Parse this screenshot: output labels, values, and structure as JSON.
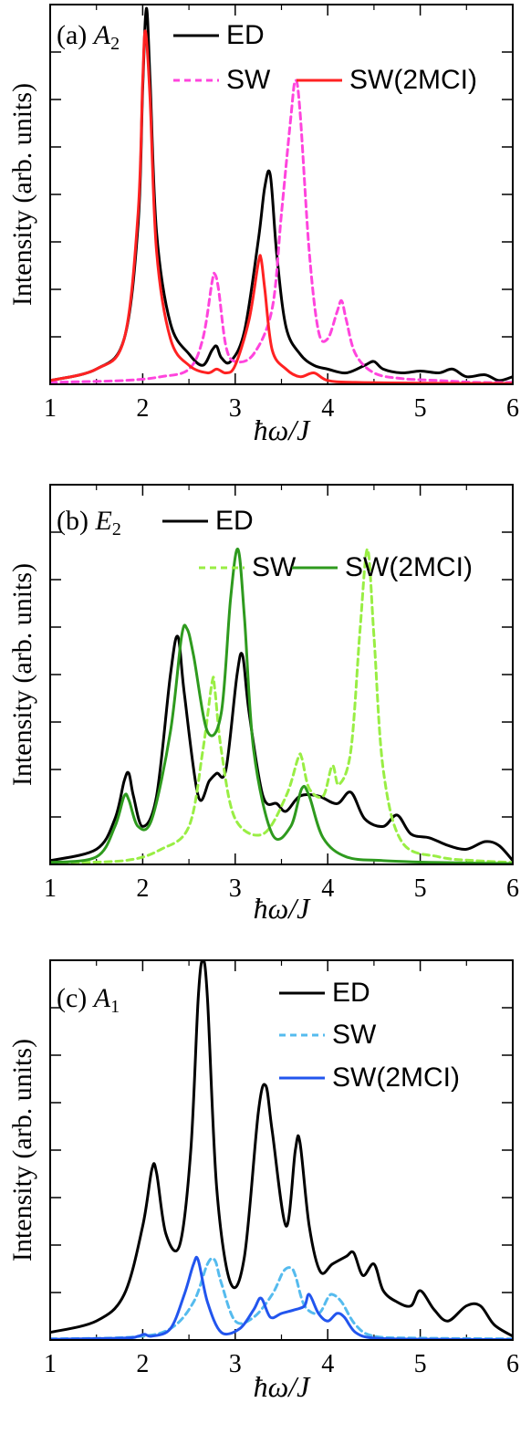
{
  "chart_data": [
    {
      "panel_id": "a",
      "type": "line",
      "label": {
        "letter": "(a)",
        "symbol": "A",
        "subscript": "2"
      },
      "xlabel": "ħω/J",
      "ylabel": "Intensity (arb. units)",
      "xlim": [
        1,
        6
      ],
      "xticks": [
        "1",
        "2",
        "3",
        "4",
        "5",
        "6"
      ],
      "ylim": [
        0,
        1.0
      ],
      "legend_placement": "top-right",
      "series": [
        {
          "name": "ED",
          "color": "#000000",
          "dash": "solid",
          "x": [
            1.0,
            1.5,
            1.8,
            1.95,
            2.0,
            2.04,
            2.08,
            2.15,
            2.3,
            2.5,
            2.65,
            2.75,
            2.8,
            2.85,
            2.95,
            3.1,
            3.25,
            3.32,
            3.38,
            3.45,
            3.55,
            3.7,
            3.85,
            4.0,
            4.2,
            4.4,
            4.5,
            4.6,
            4.8,
            5.0,
            5.2,
            5.35,
            5.5,
            5.7,
            5.85,
            6.0
          ],
          "y": [
            0.01,
            0.04,
            0.12,
            0.42,
            0.78,
            0.99,
            0.8,
            0.4,
            0.16,
            0.08,
            0.05,
            0.09,
            0.1,
            0.07,
            0.06,
            0.14,
            0.38,
            0.52,
            0.55,
            0.34,
            0.15,
            0.08,
            0.05,
            0.04,
            0.03,
            0.05,
            0.06,
            0.04,
            0.03,
            0.035,
            0.03,
            0.04,
            0.02,
            0.025,
            0.01,
            0.02
          ]
        },
        {
          "name": "SW",
          "color": "#ff44dd",
          "dash": "dashed",
          "x": [
            1.0,
            1.8,
            2.2,
            2.5,
            2.65,
            2.75,
            2.78,
            2.82,
            2.9,
            3.0,
            3.2,
            3.4,
            3.5,
            3.6,
            3.65,
            3.7,
            3.8,
            3.9,
            4.0,
            4.1,
            4.15,
            4.2,
            4.3,
            4.5,
            4.8,
            5.2,
            5.6,
            6.0
          ],
          "y": [
            0.005,
            0.01,
            0.02,
            0.04,
            0.12,
            0.27,
            0.29,
            0.25,
            0.1,
            0.06,
            0.08,
            0.2,
            0.45,
            0.7,
            0.8,
            0.72,
            0.35,
            0.14,
            0.12,
            0.19,
            0.22,
            0.17,
            0.08,
            0.03,
            0.015,
            0.01,
            0.005,
            0.005
          ]
        },
        {
          "name": "SW(2MCI)",
          "color": "#ff2222",
          "dash": "solid",
          "x": [
            1.0,
            1.5,
            1.8,
            1.95,
            2.0,
            2.03,
            2.08,
            2.15,
            2.3,
            2.5,
            2.7,
            2.8,
            2.9,
            3.0,
            3.15,
            3.25,
            3.28,
            3.32,
            3.4,
            3.55,
            3.7,
            3.85,
            4.0,
            4.3,
            5.0,
            6.0
          ],
          "y": [
            0.01,
            0.04,
            0.12,
            0.45,
            0.8,
            0.93,
            0.75,
            0.35,
            0.12,
            0.05,
            0.03,
            0.04,
            0.03,
            0.05,
            0.17,
            0.32,
            0.33,
            0.25,
            0.09,
            0.04,
            0.02,
            0.03,
            0.01,
            0.005,
            0.003,
            0.002
          ]
        }
      ]
    },
    {
      "panel_id": "b",
      "type": "line",
      "label": {
        "letter": "(b)",
        "symbol": "E",
        "subscript": "2"
      },
      "xlabel": "ħω/J",
      "ylabel": "Intensity (arb. units)",
      "xlim": [
        1,
        6
      ],
      "xticks": [
        "1",
        "2",
        "3",
        "4",
        "5",
        "6"
      ],
      "ylim": [
        0,
        1.0
      ],
      "legend_placement": "top-right",
      "series": [
        {
          "name": "ED",
          "color": "#000000",
          "dash": "solid",
          "x": [
            1.0,
            1.5,
            1.7,
            1.8,
            1.85,
            1.9,
            2.0,
            2.15,
            2.3,
            2.38,
            2.45,
            2.6,
            2.72,
            2.8,
            2.9,
            3.02,
            3.08,
            3.15,
            3.3,
            3.45,
            3.55,
            3.7,
            3.9,
            4.1,
            4.25,
            4.4,
            4.6,
            4.75,
            4.9,
            5.1,
            5.3,
            5.5,
            5.7,
            5.85,
            6.0
          ],
          "y": [
            0.01,
            0.04,
            0.12,
            0.22,
            0.24,
            0.18,
            0.1,
            0.18,
            0.5,
            0.6,
            0.45,
            0.18,
            0.22,
            0.24,
            0.25,
            0.5,
            0.55,
            0.4,
            0.18,
            0.16,
            0.14,
            0.18,
            0.18,
            0.16,
            0.19,
            0.12,
            0.1,
            0.13,
            0.08,
            0.07,
            0.05,
            0.04,
            0.06,
            0.05,
            0.01
          ]
        },
        {
          "name": "SW",
          "color": "#99ee44",
          "dash": "dashed",
          "x": [
            1.0,
            1.8,
            2.2,
            2.5,
            2.65,
            2.75,
            2.78,
            2.85,
            3.0,
            3.3,
            3.55,
            3.68,
            3.72,
            3.8,
            3.95,
            4.05,
            4.12,
            4.25,
            4.35,
            4.43,
            4.5,
            4.6,
            4.8,
            5.2,
            5.6,
            6.0
          ],
          "y": [
            0.005,
            0.01,
            0.04,
            0.1,
            0.3,
            0.48,
            0.46,
            0.3,
            0.12,
            0.08,
            0.18,
            0.28,
            0.28,
            0.2,
            0.18,
            0.26,
            0.21,
            0.3,
            0.62,
            0.83,
            0.6,
            0.25,
            0.06,
            0.02,
            0.01,
            0.005
          ]
        },
        {
          "name": "SW(2MCI)",
          "color": "#2e9a1e",
          "dash": "solid",
          "x": [
            1.0,
            1.5,
            1.7,
            1.8,
            1.85,
            1.95,
            2.1,
            2.3,
            2.42,
            2.48,
            2.55,
            2.7,
            2.85,
            2.95,
            3.03,
            3.1,
            3.2,
            3.4,
            3.6,
            3.72,
            3.8,
            3.95,
            4.2,
            4.6,
            5.2,
            6.0
          ],
          "y": [
            0.005,
            0.02,
            0.1,
            0.18,
            0.17,
            0.1,
            0.12,
            0.35,
            0.6,
            0.62,
            0.55,
            0.35,
            0.4,
            0.7,
            0.83,
            0.65,
            0.3,
            0.08,
            0.1,
            0.2,
            0.18,
            0.07,
            0.02,
            0.01,
            0.005,
            0.002
          ]
        }
      ]
    },
    {
      "panel_id": "c",
      "type": "line",
      "label": {
        "letter": "(c)",
        "symbol": "A",
        "subscript": "1"
      },
      "xlabel": "ħω/J",
      "ylabel": "Intensity (arb. units)",
      "xlim": [
        1,
        6
      ],
      "xticks": [
        "1",
        "2",
        "3",
        "4",
        "5",
        "6"
      ],
      "ylim": [
        0,
        1.0
      ],
      "legend_placement": "top-right",
      "series": [
        {
          "name": "ED",
          "color": "#000000",
          "dash": "solid",
          "x": [
            1.0,
            1.5,
            1.8,
            2.0,
            2.1,
            2.15,
            2.25,
            2.4,
            2.52,
            2.6,
            2.65,
            2.7,
            2.8,
            2.95,
            3.1,
            3.25,
            3.33,
            3.4,
            3.55,
            3.65,
            3.7,
            3.8,
            3.92,
            4.05,
            4.2,
            4.28,
            4.38,
            4.5,
            4.6,
            4.75,
            4.9,
            5.0,
            5.15,
            5.3,
            5.5,
            5.65,
            5.8,
            6.0
          ],
          "y": [
            0.02,
            0.05,
            0.12,
            0.3,
            0.45,
            0.44,
            0.28,
            0.25,
            0.5,
            0.9,
            1.0,
            0.9,
            0.4,
            0.15,
            0.22,
            0.6,
            0.67,
            0.55,
            0.3,
            0.5,
            0.52,
            0.3,
            0.18,
            0.2,
            0.22,
            0.23,
            0.17,
            0.2,
            0.13,
            0.1,
            0.09,
            0.13,
            0.08,
            0.05,
            0.09,
            0.09,
            0.04,
            0.01
          ]
        },
        {
          "name": "SW",
          "color": "#55bbee",
          "dash": "dashed",
          "x": [
            1.0,
            1.9,
            2.3,
            2.55,
            2.7,
            2.78,
            2.85,
            3.0,
            3.2,
            3.4,
            3.52,
            3.6,
            3.65,
            3.75,
            3.9,
            4.0,
            4.05,
            4.15,
            4.3,
            4.5,
            5.0,
            6.0
          ],
          "y": [
            0.003,
            0.008,
            0.03,
            0.1,
            0.2,
            0.21,
            0.15,
            0.05,
            0.06,
            0.12,
            0.18,
            0.19,
            0.17,
            0.09,
            0.07,
            0.11,
            0.12,
            0.1,
            0.04,
            0.01,
            0.005,
            0.003
          ]
        },
        {
          "name": "SW(2MCI)",
          "color": "#2255ee",
          "dash": "solid",
          "x": [
            1.0,
            1.8,
            1.95,
            2.02,
            2.1,
            2.3,
            2.45,
            2.55,
            2.6,
            2.7,
            2.85,
            3.05,
            3.2,
            3.28,
            3.38,
            3.5,
            3.65,
            3.75,
            3.8,
            3.9,
            4.0,
            4.1,
            4.18,
            4.3,
            4.5,
            5.0,
            6.0
          ],
          "y": [
            0.002,
            0.005,
            0.01,
            0.015,
            0.01,
            0.03,
            0.12,
            0.2,
            0.21,
            0.1,
            0.02,
            0.03,
            0.08,
            0.11,
            0.06,
            0.07,
            0.08,
            0.09,
            0.12,
            0.07,
            0.05,
            0.07,
            0.06,
            0.02,
            0.005,
            0.002,
            0.001
          ]
        }
      ]
    }
  ]
}
